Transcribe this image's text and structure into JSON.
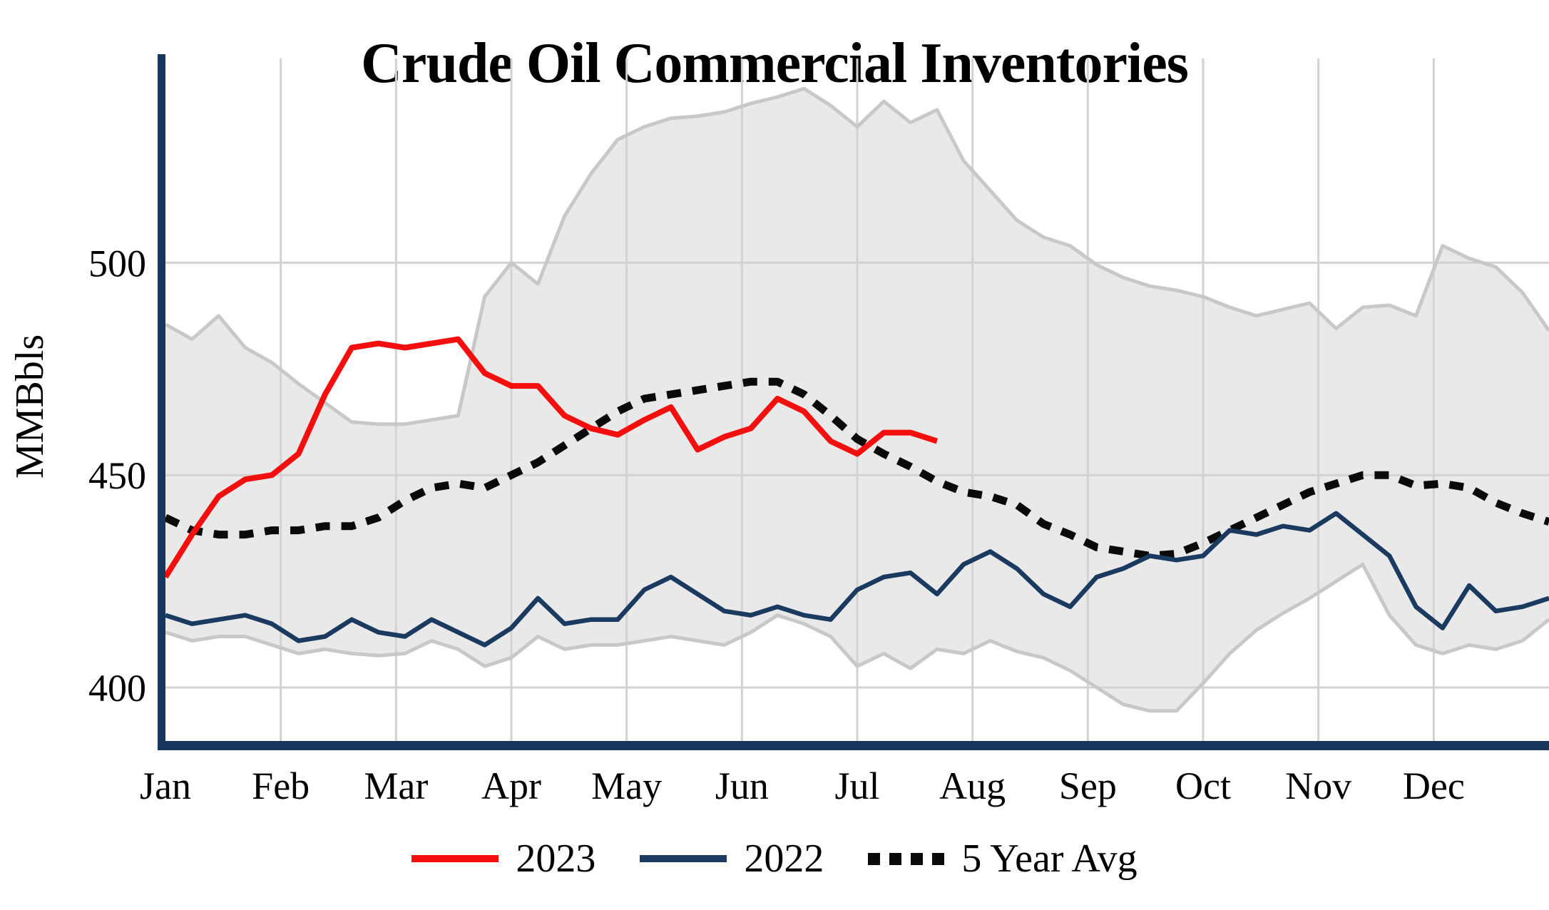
{
  "page": {
    "title": "Crude Oil Commercial Inventories"
  },
  "y_axis": {
    "label": "MMBbls",
    "ticks": [
      {
        "label": "500",
        "value": 500
      },
      {
        "label": "450",
        "value": 450
      },
      {
        "label": "400",
        "value": 400
      }
    ]
  },
  "x_axis": {
    "months": [
      "Jan",
      "Feb",
      "Mar",
      "Apr",
      "May",
      "Jun",
      "Jul",
      "Aug",
      "Sep",
      "Oct",
      "Nov",
      "Dec"
    ]
  },
  "legend": {
    "items": [
      {
        "label": "2023",
        "color": "#f40f0f",
        "style": "solid"
      },
      {
        "label": "2022",
        "color": "#1b3a5f",
        "style": "solid"
      },
      {
        "label": "5 Year Avg",
        "color": "#0a0a0a",
        "style": "dotted"
      }
    ]
  },
  "chart_data": {
    "type": "line",
    "title": "Crude Oil Commercial Inventories",
    "xlabel": "",
    "ylabel": "MMBbls",
    "ylim": [
      386,
      549
    ],
    "yticks": [
      400,
      450,
      500
    ],
    "x_unit": "weekly points, 52 weeks spanning Jan through Dec",
    "x_tick_labels": [
      "Jan",
      "Feb",
      "Mar",
      "Apr",
      "May",
      "Jun",
      "Jul",
      "Aug",
      "Sep",
      "Oct",
      "Nov",
      "Dec"
    ],
    "grid": true,
    "legend_position": "bottom",
    "background": "#ffffff",
    "grid_color": "#d2d2d2",
    "axis_color": "#16365c",
    "series": [
      {
        "name": "2023",
        "color": "#f40f0f",
        "style": "solid",
        "width": 8,
        "values": [
          426,
          436,
          445,
          449,
          450,
          455,
          469,
          480,
          481,
          480,
          481,
          482,
          474,
          471,
          471,
          464,
          461,
          459.5,
          463,
          466,
          456,
          459,
          461,
          468,
          465,
          458,
          455,
          460,
          460,
          458
        ]
      },
      {
        "name": "2022",
        "color": "#1b3a5f",
        "style": "solid",
        "width": 6.5,
        "values": [
          417,
          415,
          416,
          417,
          415,
          411,
          412,
          416,
          413,
          412,
          416,
          413,
          410,
          414,
          421,
          415,
          416,
          416,
          423,
          426,
          422,
          418,
          417,
          419,
          417,
          416,
          423,
          426,
          427,
          422,
          429,
          432,
          428,
          422,
          419,
          426,
          428,
          431,
          430,
          431,
          437,
          436,
          438,
          437,
          441,
          436,
          431,
          419,
          414,
          424,
          418,
          419,
          421
        ]
      },
      {
        "name": "5 Year Avg",
        "color": "#0a0a0a",
        "style": "dotted",
        "width": 11,
        "dash": "20 16",
        "values": [
          440,
          437,
          436,
          436,
          437,
          437,
          438,
          438,
          440,
          444,
          447,
          448,
          447,
          450,
          453,
          457,
          461,
          465,
          468,
          469,
          470,
          471,
          472,
          472,
          469,
          464,
          458.5,
          455,
          452,
          448.5,
          446,
          445,
          443,
          438.5,
          436,
          433,
          432,
          431,
          431.5,
          434,
          437,
          440,
          443,
          446,
          448,
          450,
          450,
          447.5,
          448,
          447,
          443.5,
          441,
          439
        ]
      }
    ],
    "band": {
      "name": "5-year min-max range",
      "fill": "#e9e9e9",
      "edge": "#c8c8c8",
      "edge_width": 5,
      "upper": [
        485.5,
        482,
        487.5,
        480,
        476.5,
        471.5,
        467,
        462.5,
        462,
        462,
        463,
        464,
        492,
        500,
        495,
        511,
        521,
        529,
        532,
        534,
        534.5,
        535.5,
        537.5,
        539,
        541,
        537,
        532,
        538,
        533,
        536,
        524,
        517,
        510,
        506,
        504,
        499.5,
        496.5,
        494.5,
        493.5,
        492,
        489.5,
        487.5,
        489,
        490.5,
        484.5,
        489.5,
        490,
        487.5,
        504,
        501,
        499,
        493,
        484
      ],
      "lower": [
        413,
        411,
        412,
        412,
        410,
        408,
        409,
        408,
        407.5,
        408,
        411,
        409,
        405,
        407,
        412,
        409,
        410,
        410,
        411,
        412,
        411,
        410,
        413,
        417,
        415,
        412,
        405,
        408,
        404.5,
        409,
        408,
        411,
        408.5,
        407,
        404,
        400,
        396,
        394.5,
        394.5,
        401,
        408,
        413.5,
        417.5,
        421,
        425,
        429,
        417,
        410,
        408,
        410,
        409,
        411,
        416
      ]
    }
  }
}
